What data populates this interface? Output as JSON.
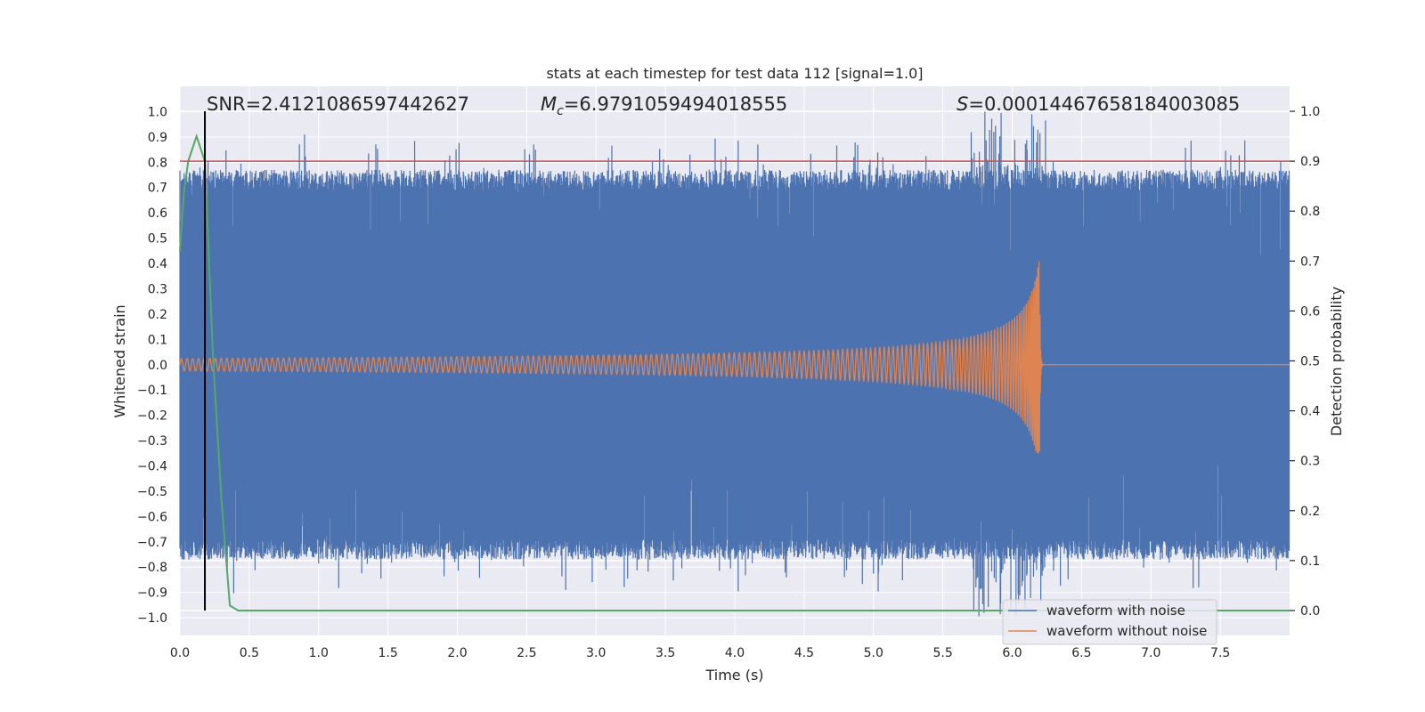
{
  "chart_data": {
    "type": "line",
    "title": "stats at each timestep for test data 112 [signal=1.0]",
    "xlabel": "Time (s)",
    "ylabel": "Whitened strain",
    "y2label": "Detection probability",
    "xlim": [
      0.0,
      8.0
    ],
    "ylim": [
      -1.07,
      1.1
    ],
    "y2lim": [
      -0.05,
      1.05
    ],
    "x_ticks": [
      0.0,
      0.5,
      1.0,
      1.5,
      2.0,
      2.5,
      3.0,
      3.5,
      4.0,
      4.5,
      5.0,
      5.5,
      6.0,
      6.5,
      7.0,
      7.5
    ],
    "y_ticks": [
      1.0,
      0.9,
      0.8,
      0.7,
      0.6,
      0.5,
      0.4,
      0.3,
      0.2,
      0.1,
      0.0,
      -0.1,
      -0.2,
      -0.3,
      -0.4,
      -0.5,
      -0.6,
      -0.7,
      -0.8,
      -0.9,
      -1.0
    ],
    "y2_ticks": [
      1.0,
      0.9,
      0.8,
      0.7,
      0.6,
      0.5,
      0.4,
      0.3,
      0.2,
      0.1,
      0.0
    ],
    "grid": true,
    "legend_position": "lower-right",
    "annotations": {
      "snr": "SNR=2.4121086597442627",
      "mc_symbol": "M",
      "mc_sub": "c",
      "mc_value": "=6.9791059494018555",
      "s_symbol": "S",
      "s_value": "=0.00014467658184003085"
    },
    "threshold_y2": 0.9,
    "marker_x": 0.18,
    "series": [
      {
        "name": "waveform with noise",
        "color": "#4c72b0",
        "description_values": {
          "envelope_typical": 0.72,
          "min": -1.0,
          "max": 1.0
        }
      },
      {
        "name": "waveform without noise",
        "color": "#dd8452",
        "chirp": {
          "start_amplitude": 0.025,
          "peak_amplitude_pos": 0.47,
          "peak_amplitude_neg": -0.35,
          "merger_time": 6.2
        }
      },
      {
        "axis": "y2",
        "color": "#55a868",
        "x": [
          0.0,
          0.03,
          0.06,
          0.12,
          0.18,
          0.24,
          0.3,
          0.36,
          0.42,
          8.0
        ],
        "y": [
          0.72,
          0.84,
          0.9,
          0.95,
          0.9,
          0.5,
          0.22,
          0.01,
          0.0,
          0.0
        ]
      }
    ],
    "colors": {
      "background": "#eaeaf2",
      "grid": "#ffffff",
      "threshold": "#c44e52",
      "marker": "#000000"
    }
  }
}
